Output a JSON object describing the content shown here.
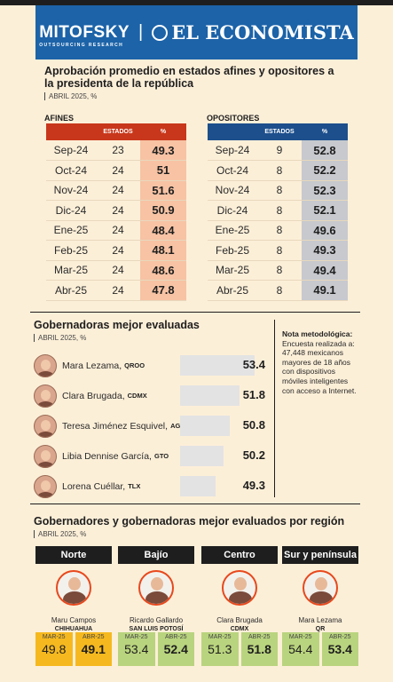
{
  "header": {
    "brand_left": "MITOFSKY",
    "brand_left_sub": "OUTSOURCING RESEARCH",
    "brand_right": "EL ECONOMISTA"
  },
  "approval": {
    "title": "Aprobación promedio en estados afines y opositores a la presidenta de la república",
    "subtitle": "ABRIL 2025, %",
    "afines": {
      "label": "AFINES",
      "col_states": "ESTADOS",
      "col_pct": "%",
      "color": "#c8371b",
      "fill": "#f7c3a4",
      "rows": [
        {
          "month": "Sep-24",
          "states": "23",
          "pct": "49.3"
        },
        {
          "month": "Oct-24",
          "states": "24",
          "pct": "51"
        },
        {
          "month": "Nov-24",
          "states": "24",
          "pct": "51.6"
        },
        {
          "month": "Dic-24",
          "states": "24",
          "pct": "50.9"
        },
        {
          "month": "Ene-25",
          "states": "24",
          "pct": "48.4"
        },
        {
          "month": "Feb-25",
          "states": "24",
          "pct": "48.1"
        },
        {
          "month": "Mar-25",
          "states": "24",
          "pct": "48.6"
        },
        {
          "month": "Abr-25",
          "states": "24",
          "pct": "47.8"
        }
      ]
    },
    "opositores": {
      "label": "OPOSITORES",
      "col_states": "ESTADOS",
      "col_pct": "%",
      "color": "#1c4f8c",
      "fill": "#c7c9ce",
      "rows": [
        {
          "month": "Sep-24",
          "states": "9",
          "pct": "52.8"
        },
        {
          "month": "Oct-24",
          "states": "8",
          "pct": "52.2"
        },
        {
          "month": "Nov-24",
          "states": "8",
          "pct": "52.3"
        },
        {
          "month": "Dic-24",
          "states": "8",
          "pct": "52.1"
        },
        {
          "month": "Ene-25",
          "states": "8",
          "pct": "49.6"
        },
        {
          "month": "Feb-25",
          "states": "8",
          "pct": "49.3"
        },
        {
          "month": "Mar-25",
          "states": "8",
          "pct": "49.4"
        },
        {
          "month": "Abr-25",
          "states": "8",
          "pct": "49.1"
        }
      ]
    }
  },
  "governors": {
    "title": "Gobernadoras mejor evaluadas",
    "subtitle": "ABRIL 2025, %",
    "items": [
      {
        "name": "Mara Lezama,",
        "state": "QROO",
        "value": "53.4"
      },
      {
        "name": "Clara Brugada,",
        "state": "CDMX",
        "value": "51.8"
      },
      {
        "name": "Teresa Jiménez Esquivel,",
        "state": "AGS",
        "value": "50.8"
      },
      {
        "name": "Libia Dennise García,",
        "state": "GTO",
        "value": "50.2"
      },
      {
        "name": "Lorena Cuéllar,",
        "state": "TLX",
        "value": "49.3"
      }
    ]
  },
  "note": {
    "title": "Nota metodológica:",
    "text": "Encuesta realizada a: 47,448 mexicanos mayores de 18 años con dispositivos móviles inteligentes con acceso a Internet."
  },
  "regions": {
    "title": "Gobernadores y gobernadoras mejor evaluados por región",
    "subtitle": "ABRIL 2025, %",
    "items": [
      {
        "region": "Norte",
        "name": "Maru Campos",
        "state": "CHIHUAHUA",
        "color": "#f5b91f",
        "m1": "MAR-25",
        "v1": "49.8",
        "m2": "ABR-25",
        "v2": "49.1"
      },
      {
        "region": "Bajío",
        "name": "Ricardo Gallardo",
        "state": "SAN LUIS POTOSÍ",
        "color": "#b9d47e",
        "m1": "MAR-25",
        "v1": "53.4",
        "m2": "ABR-25",
        "v2": "52.4"
      },
      {
        "region": "Centro",
        "name": "Clara Brugada",
        "state": "CDMX",
        "color": "#b9d47e",
        "m1": "MAR-25",
        "v1": "51.3",
        "m2": "ABR-25",
        "v2": "51.8"
      },
      {
        "region": "Sur y península",
        "name": "Mara Lezama",
        "state": "QR",
        "color": "#b9d47e",
        "m1": "MAR-25",
        "v1": "54.4",
        "m2": "ABR-25",
        "v2": "53.4"
      }
    ]
  },
  "chart_data": [
    {
      "type": "table",
      "title": "Aprobación promedio en estados afines y opositores a la presidenta de la república",
      "categories": [
        "Sep-24",
        "Oct-24",
        "Nov-24",
        "Dic-24",
        "Ene-25",
        "Feb-25",
        "Mar-25",
        "Abr-25"
      ],
      "series": [
        {
          "name": "AFINES",
          "states": [
            23,
            24,
            24,
            24,
            24,
            24,
            24,
            24
          ],
          "values": [
            49.3,
            51,
            51.6,
            50.9,
            48.4,
            48.1,
            48.6,
            47.8
          ]
        },
        {
          "name": "OPOSITORES",
          "states": [
            9,
            8,
            8,
            8,
            8,
            8,
            8,
            8
          ],
          "values": [
            52.8,
            52.2,
            52.3,
            52.1,
            49.6,
            49.3,
            49.4,
            49.1
          ]
        }
      ]
    },
    {
      "type": "bar",
      "title": "Gobernadoras mejor evaluadas",
      "categories": [
        "Mara Lezama, QROO",
        "Clara Brugada, CDMX",
        "Teresa Jiménez Esquivel, AGS",
        "Libia Dennise García, GTO",
        "Lorena Cuéllar, TLX"
      ],
      "values": [
        53.4,
        51.8,
        50.8,
        50.2,
        49.3
      ]
    },
    {
      "type": "table",
      "title": "Gobernadores y gobernadoras mejor evaluados por región",
      "categories": [
        "Norte",
        "Bajío",
        "Centro",
        "Sur y península"
      ],
      "series": [
        {
          "name": "MAR-25",
          "values": [
            49.8,
            53.4,
            51.3,
            54.4
          ]
        },
        {
          "name": "ABR-25",
          "values": [
            49.1,
            52.4,
            51.8,
            53.4
          ]
        }
      ]
    }
  ]
}
